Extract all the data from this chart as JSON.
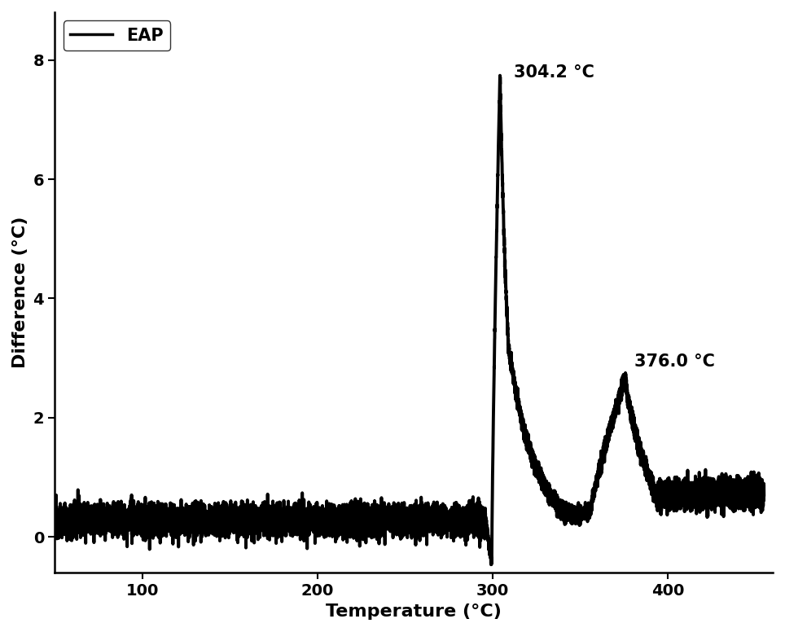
{
  "title": "",
  "xlabel": "Temperature (°C)",
  "ylabel": "Difference (°C)",
  "xlim": [
    50,
    460
  ],
  "ylim": [
    -0.6,
    8.8
  ],
  "xticks": [
    100,
    200,
    300,
    400
  ],
  "yticks": [
    0,
    2,
    4,
    6,
    8
  ],
  "line_color": "#000000",
  "background_color": "#ffffff",
  "legend_label": "EAP",
  "peak1_x": 304.2,
  "peak1_y": 7.75,
  "peak1_label": "304.2 °C",
  "peak2_x": 376.0,
  "peak2_y": 2.7,
  "peak2_label": "376.0 °C",
  "noise_amplitude": 0.13,
  "noise_baseline": 0.28,
  "x_start": 50,
  "x_end": 455,
  "linewidth": 2.8
}
